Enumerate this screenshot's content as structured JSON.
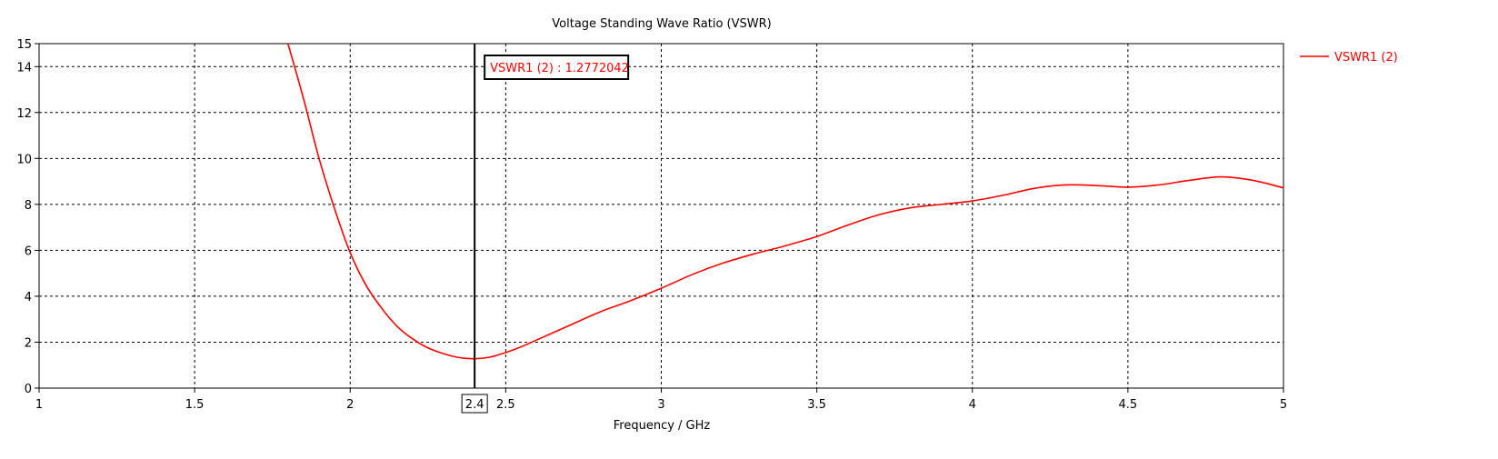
{
  "chart_data": {
    "type": "line",
    "title": "Voltage Standing Wave Ratio (VSWR)",
    "xlabel": "Frequency / GHz",
    "ylabel": "",
    "xlim": [
      1,
      5
    ],
    "ylim": [
      0,
      15
    ],
    "x_ticks": [
      "1",
      "1.5",
      "2",
      "2.5",
      "3",
      "3.5",
      "4",
      "4.5",
      "5"
    ],
    "y_ticks": [
      "0",
      "2",
      "4",
      "6",
      "8",
      "10",
      "12",
      "14",
      "15"
    ],
    "grid": true,
    "legend_position": "right",
    "series": [
      {
        "name": "VSWR1 (2)",
        "color": "#ff0000",
        "points": [
          [
            1.8,
            15.0
          ],
          [
            1.85,
            12.6
          ],
          [
            1.9,
            10.0
          ],
          [
            1.95,
            7.8
          ],
          [
            2.0,
            5.9
          ],
          [
            2.05,
            4.5
          ],
          [
            2.1,
            3.5
          ],
          [
            2.15,
            2.7
          ],
          [
            2.2,
            2.15
          ],
          [
            2.25,
            1.75
          ],
          [
            2.3,
            1.5
          ],
          [
            2.35,
            1.33
          ],
          [
            2.4,
            1.28
          ],
          [
            2.45,
            1.35
          ],
          [
            2.5,
            1.55
          ],
          [
            2.55,
            1.8
          ],
          [
            2.6,
            2.1
          ],
          [
            2.7,
            2.7
          ],
          [
            2.8,
            3.3
          ],
          [
            2.9,
            3.8
          ],
          [
            3.0,
            4.35
          ],
          [
            3.1,
            4.95
          ],
          [
            3.2,
            5.45
          ],
          [
            3.3,
            5.85
          ],
          [
            3.4,
            6.2
          ],
          [
            3.5,
            6.6
          ],
          [
            3.6,
            7.1
          ],
          [
            3.7,
            7.55
          ],
          [
            3.8,
            7.85
          ],
          [
            3.9,
            8.0
          ],
          [
            4.0,
            8.15
          ],
          [
            4.1,
            8.4
          ],
          [
            4.2,
            8.7
          ],
          [
            4.3,
            8.85
          ],
          [
            4.4,
            8.82
          ],
          [
            4.5,
            8.75
          ],
          [
            4.6,
            8.85
          ],
          [
            4.7,
            9.05
          ],
          [
            4.8,
            9.2
          ],
          [
            4.9,
            9.05
          ],
          [
            5.0,
            8.72
          ]
        ]
      }
    ],
    "marker": {
      "x": 2.4,
      "x_label": "2.4",
      "label": "VSWR1 (2) : 1.2772042",
      "value": 1.2772042
    }
  },
  "colors": {
    "series": "#ff0000",
    "grid": "#000000",
    "marker_line": "#000000"
  }
}
